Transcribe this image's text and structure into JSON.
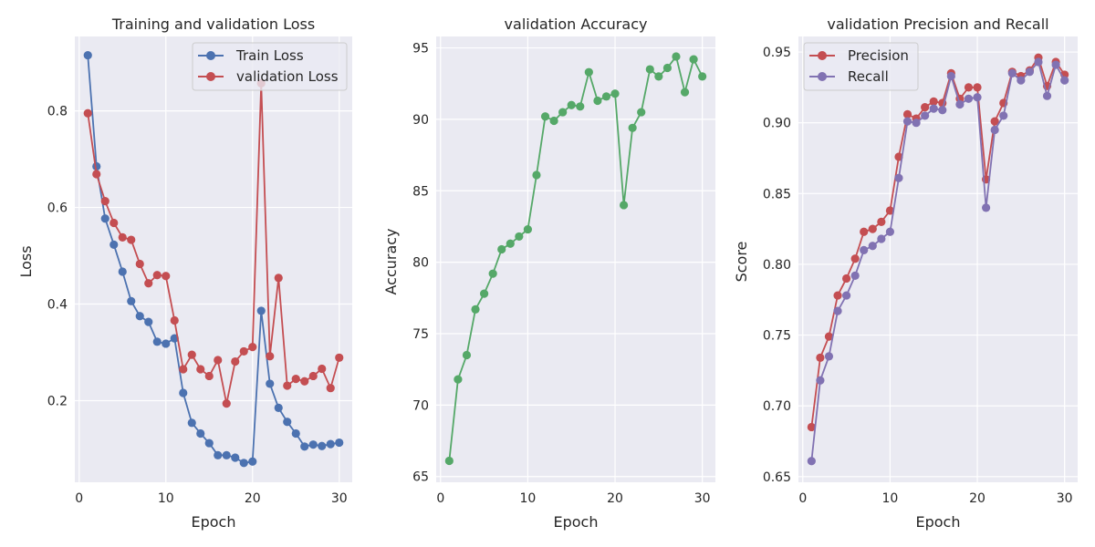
{
  "chart_data": [
    {
      "type": "line",
      "title": "Training and validation Loss",
      "xlabel": "Epoch",
      "ylabel": "Loss",
      "xlim": [
        -0.5,
        31.5
      ],
      "ylim": [
        0.031,
        0.954
      ],
      "xticks": [
        0,
        10,
        20,
        30
      ],
      "yticks": [
        0.2,
        0.4,
        0.6,
        0.8
      ],
      "ytick_labels": [
        "0.2",
        "0.4",
        "0.6",
        "0.8"
      ],
      "grid": true,
      "legend": "top-right",
      "x": [
        1,
        2,
        3,
        4,
        5,
        6,
        7,
        8,
        9,
        10,
        11,
        12,
        13,
        14,
        15,
        16,
        17,
        18,
        19,
        20,
        21,
        22,
        23,
        24,
        25,
        26,
        27,
        28,
        29,
        30
      ],
      "series": [
        {
          "name": "Train Loss",
          "color": "#4c72b0",
          "values": [
            0.915,
            0.685,
            0.577,
            0.523,
            0.467,
            0.406,
            0.375,
            0.363,
            0.322,
            0.318,
            0.329,
            0.216,
            0.154,
            0.132,
            0.112,
            0.087,
            0.087,
            0.082,
            0.071,
            0.074,
            0.386,
            0.235,
            0.185,
            0.156,
            0.132,
            0.105,
            0.109,
            0.106,
            0.11,
            0.113
          ]
        },
        {
          "name": "validation Loss",
          "color": "#c44e52",
          "values": [
            0.795,
            0.669,
            0.613,
            0.568,
            0.538,
            0.533,
            0.483,
            0.443,
            0.46,
            0.458,
            0.366,
            0.265,
            0.295,
            0.265,
            0.251,
            0.284,
            0.194,
            0.281,
            0.302,
            0.311,
            0.857,
            0.292,
            0.454,
            0.231,
            0.245,
            0.24,
            0.251,
            0.266,
            0.226,
            0.289
          ]
        }
      ]
    },
    {
      "type": "line",
      "title": "validation Accuracy",
      "xlabel": "Epoch",
      "ylabel": "Accuracy",
      "xlim": [
        -0.5,
        31.5
      ],
      "ylim": [
        64.6,
        95.8
      ],
      "xticks": [
        0,
        10,
        20,
        30
      ],
      "yticks": [
        65,
        70,
        75,
        80,
        85,
        90,
        95
      ],
      "ytick_labels": [
        "65",
        "70",
        "75",
        "80",
        "85",
        "90",
        "95"
      ],
      "grid": true,
      "x": [
        1,
        2,
        3,
        4,
        5,
        6,
        7,
        8,
        9,
        10,
        11,
        12,
        13,
        14,
        15,
        16,
        17,
        18,
        19,
        20,
        21,
        22,
        23,
        24,
        25,
        26,
        27,
        28,
        29,
        30
      ],
      "series": [
        {
          "color": "#55a868",
          "values": [
            66.1,
            71.8,
            73.5,
            76.7,
            77.8,
            79.2,
            80.9,
            81.3,
            81.8,
            82.3,
            86.1,
            90.2,
            89.9,
            90.5,
            91.0,
            90.9,
            93.3,
            91.3,
            91.6,
            91.8,
            84.0,
            89.4,
            90.5,
            93.5,
            93.0,
            93.6,
            94.4,
            91.9,
            94.2,
            93.0
          ]
        }
      ]
    },
    {
      "type": "line",
      "title": "validation Precision and Recall",
      "xlabel": "Epoch",
      "ylabel": "Score",
      "xlim": [
        -0.5,
        31.5
      ],
      "ylim": [
        0.646,
        0.961
      ],
      "xticks": [
        0,
        10,
        20,
        30
      ],
      "yticks": [
        0.65,
        0.7,
        0.75,
        0.8,
        0.85,
        0.9,
        0.95
      ],
      "ytick_labels": [
        "0.65",
        "0.70",
        "0.75",
        "0.80",
        "0.85",
        "0.90",
        "0.95"
      ],
      "grid": true,
      "legend": "top-left",
      "x": [
        1,
        2,
        3,
        4,
        5,
        6,
        7,
        8,
        9,
        10,
        11,
        12,
        13,
        14,
        15,
        16,
        17,
        18,
        19,
        20,
        21,
        22,
        23,
        24,
        25,
        26,
        27,
        28,
        29,
        30
      ],
      "series": [
        {
          "name": "Precision",
          "color": "#c44e52",
          "values": [
            0.685,
            0.734,
            0.749,
            0.778,
            0.79,
            0.804,
            0.823,
            0.825,
            0.83,
            0.838,
            0.876,
            0.906,
            0.903,
            0.911,
            0.915,
            0.914,
            0.935,
            0.917,
            0.925,
            0.925,
            0.86,
            0.901,
            0.914,
            0.936,
            0.933,
            0.937,
            0.946,
            0.926,
            0.943,
            0.934
          ]
        },
        {
          "name": "Recall",
          "color": "#8172b2",
          "values": [
            0.661,
            0.718,
            0.735,
            0.767,
            0.778,
            0.792,
            0.81,
            0.813,
            0.818,
            0.823,
            0.861,
            0.901,
            0.9,
            0.905,
            0.91,
            0.909,
            0.933,
            0.913,
            0.917,
            0.918,
            0.84,
            0.895,
            0.905,
            0.935,
            0.93,
            0.936,
            0.943,
            0.919,
            0.941,
            0.93
          ]
        }
      ]
    }
  ]
}
